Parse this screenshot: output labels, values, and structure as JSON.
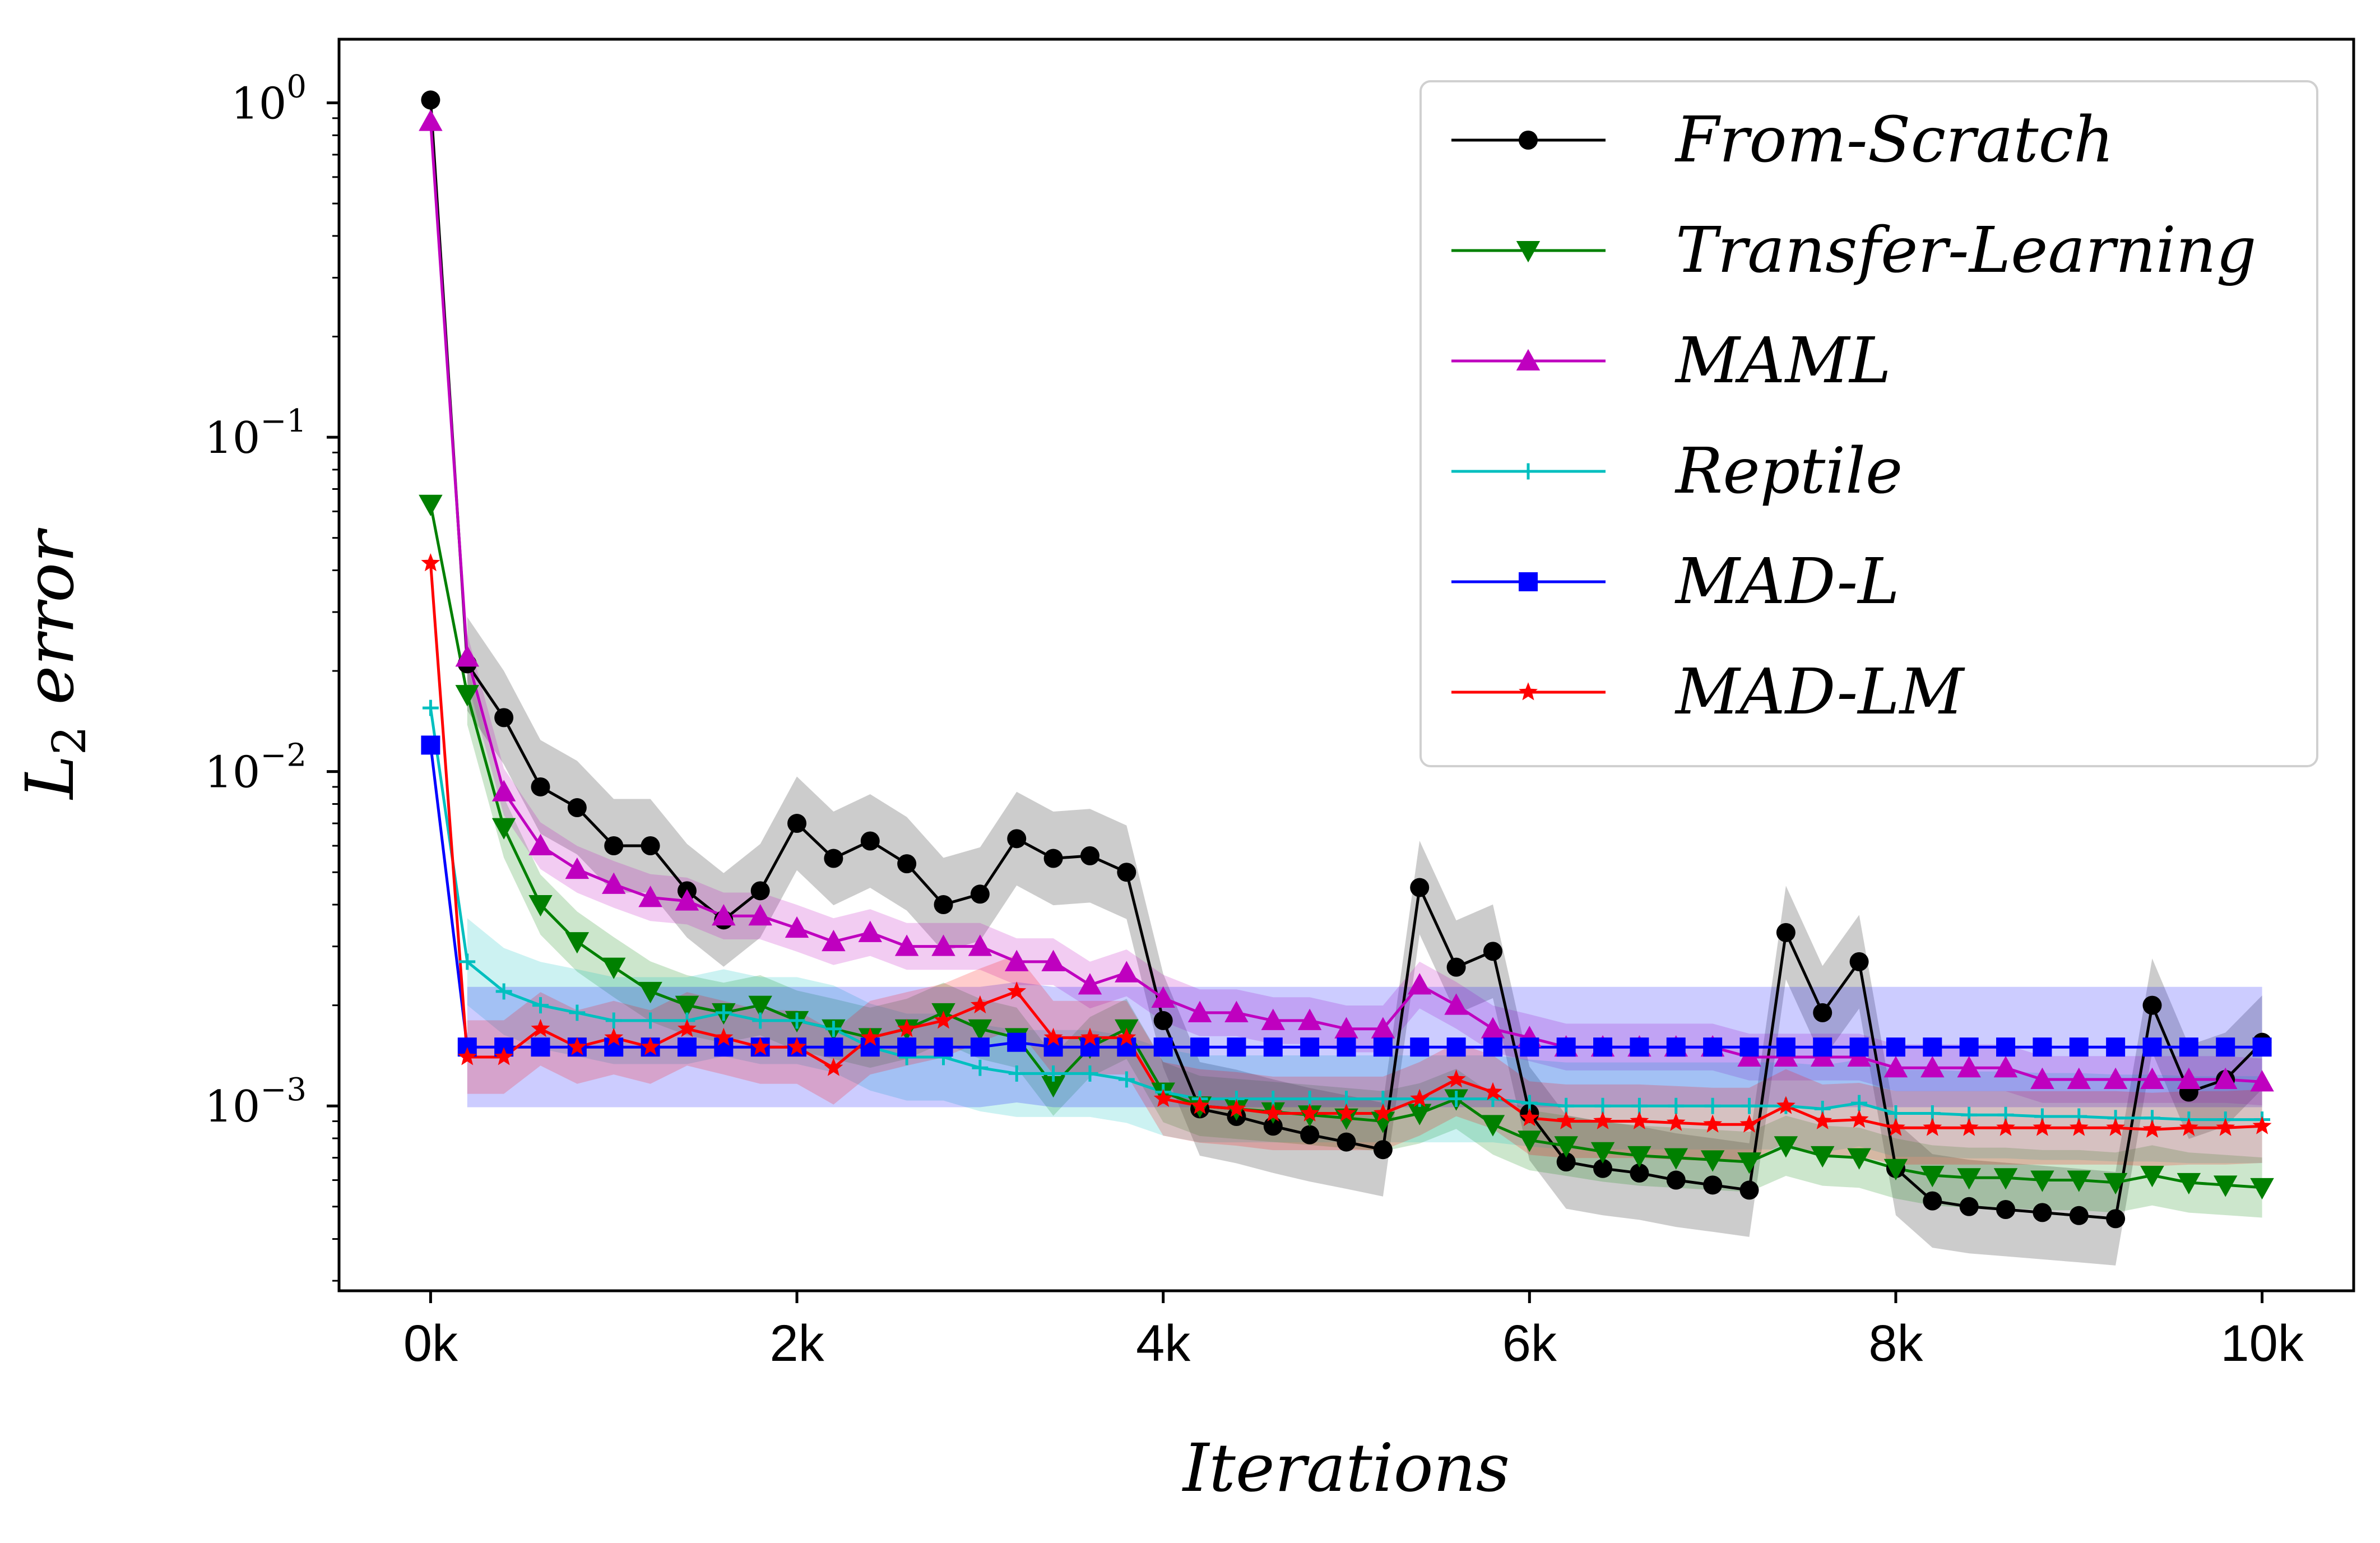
{
  "chart_data": {
    "type": "line",
    "xlabel": "Iterations",
    "ylabel_base": "L",
    "ylabel_sub": "2",
    "ylabel_rest": " error",
    "yscale": "log",
    "xlim": [
      -500,
      10500
    ],
    "ylim": [
      0.00028,
      1.55
    ],
    "grid": false,
    "legend_position": "top-right",
    "xticks": [
      {
        "value": 0,
        "label": "0k"
      },
      {
        "value": 2000,
        "label": "2k"
      },
      {
        "value": 4000,
        "label": "4k"
      },
      {
        "value": 6000,
        "label": "6k"
      },
      {
        "value": 8000,
        "label": "8k"
      },
      {
        "value": 10000,
        "label": "10k"
      }
    ],
    "yticks": [
      {
        "value": 1,
        "base": "10",
        "exp": "0"
      },
      {
        "value": 0.1,
        "base": "10",
        "exp": "−1"
      },
      {
        "value": 0.01,
        "base": "10",
        "exp": "−2"
      },
      {
        "value": 0.001,
        "base": "10",
        "exp": "−3"
      }
    ],
    "x": [
      0,
      200,
      400,
      600,
      800,
      1000,
      1200,
      1400,
      1600,
      1800,
      2000,
      2200,
      2400,
      2600,
      2800,
      3000,
      3200,
      3400,
      3600,
      3800,
      4000,
      4200,
      4400,
      4600,
      4800,
      5000,
      5200,
      5400,
      5600,
      5800,
      6000,
      6200,
      6400,
      6600,
      6800,
      7000,
      7200,
      7400,
      7600,
      7800,
      8000,
      8200,
      8400,
      8600,
      8800,
      9000,
      9200,
      9400,
      9600,
      9800,
      10000
    ],
    "series": [
      {
        "name": "From-Scratch",
        "color": "#000000",
        "marker": "circle",
        "band_spread": 0.14,
        "values": [
          1.02,
          0.021,
          0.0145,
          0.009,
          0.0078,
          0.006,
          0.006,
          0.0044,
          0.0036,
          0.0044,
          0.007,
          0.0055,
          0.0062,
          0.0053,
          0.004,
          0.0043,
          0.0063,
          0.0055,
          0.0056,
          0.005,
          0.0018,
          0.00098,
          0.00093,
          0.00087,
          0.00082,
          0.00078,
          0.00074,
          0.0045,
          0.0026,
          0.0029,
          0.00095,
          0.00068,
          0.00065,
          0.00063,
          0.0006,
          0.00058,
          0.00056,
          0.0033,
          0.0019,
          0.0027,
          0.00065,
          0.00052,
          0.0005,
          0.00049,
          0.00048,
          0.00047,
          0.00046,
          0.002,
          0.0011,
          0.0012,
          0.00155
        ]
      },
      {
        "name": "Transfer-Learning",
        "color": "#008000",
        "marker": "triangle-down",
        "band_spread": 0.09,
        "values": [
          0.063,
          0.017,
          0.0068,
          0.004,
          0.0031,
          0.0026,
          0.0022,
          0.002,
          0.0019,
          0.002,
          0.0018,
          0.0017,
          0.0016,
          0.0017,
          0.0019,
          0.0017,
          0.0016,
          0.00115,
          0.0015,
          0.0017,
          0.0011,
          0.001,
          0.00098,
          0.00096,
          0.00094,
          0.00092,
          0.0009,
          0.00095,
          0.00105,
          0.00088,
          0.00079,
          0.00076,
          0.00073,
          0.00071,
          0.0007,
          0.00069,
          0.00068,
          0.00076,
          0.00071,
          0.0007,
          0.00065,
          0.00062,
          0.00061,
          0.00061,
          0.0006,
          0.0006,
          0.00059,
          0.00062,
          0.00059,
          0.00058,
          0.00057
        ]
      },
      {
        "name": "MAML",
        "color": "#BF00BF",
        "marker": "triangle-up",
        "band_spread": 0.07,
        "values": [
          0.88,
          0.022,
          0.0087,
          0.006,
          0.0051,
          0.0046,
          0.0042,
          0.0041,
          0.0037,
          0.0037,
          0.0034,
          0.0031,
          0.0033,
          0.003,
          0.003,
          0.003,
          0.0027,
          0.0027,
          0.0023,
          0.0025,
          0.0021,
          0.0019,
          0.0019,
          0.0018,
          0.0018,
          0.0017,
          0.0017,
          0.0023,
          0.002,
          0.0017,
          0.0016,
          0.0015,
          0.0015,
          0.0015,
          0.0015,
          0.0015,
          0.0014,
          0.0014,
          0.0014,
          0.0014,
          0.0013,
          0.0013,
          0.0013,
          0.0013,
          0.0012,
          0.0012,
          0.0012,
          0.0012,
          0.0012,
          0.0012,
          0.00118
        ]
      },
      {
        "name": "Reptile",
        "color": "#00BFBF",
        "marker": "plus",
        "band_spread": 0.13,
        "values": [
          0.0155,
          0.0027,
          0.0022,
          0.002,
          0.0019,
          0.0018,
          0.0018,
          0.0018,
          0.0019,
          0.0018,
          0.0018,
          0.0017,
          0.0015,
          0.0014,
          0.0014,
          0.0013,
          0.00125,
          0.00125,
          0.00125,
          0.0012,
          0.0011,
          0.00105,
          0.00105,
          0.00105,
          0.00105,
          0.00105,
          0.00105,
          0.00105,
          0.00105,
          0.00105,
          0.00102,
          0.001,
          0.001,
          0.001,
          0.001,
          0.001,
          0.001,
          0.001,
          0.00098,
          0.00102,
          0.00095,
          0.00095,
          0.00094,
          0.00094,
          0.00093,
          0.00093,
          0.00092,
          0.00092,
          0.00091,
          0.00091,
          0.00091
        ]
      },
      {
        "name": "MAD-L",
        "color": "#0000FF",
        "marker": "square",
        "band_spread": 0.18,
        "values": [
          0.012,
          0.0015,
          0.0015,
          0.0015,
          0.0015,
          0.0015,
          0.0015,
          0.0015,
          0.0015,
          0.0015,
          0.0015,
          0.0015,
          0.0015,
          0.0015,
          0.0015,
          0.0015,
          0.00155,
          0.0015,
          0.0015,
          0.0015,
          0.0015,
          0.0015,
          0.0015,
          0.0015,
          0.0015,
          0.0015,
          0.0015,
          0.0015,
          0.0015,
          0.0015,
          0.0015,
          0.0015,
          0.0015,
          0.0015,
          0.0015,
          0.0015,
          0.0015,
          0.0015,
          0.0015,
          0.0015,
          0.0015,
          0.0015,
          0.0015,
          0.0015,
          0.0015,
          0.0015,
          0.0015,
          0.0015,
          0.0015,
          0.0015,
          0.0015
        ]
      },
      {
        "name": "MAD-LM",
        "color": "#FF0000",
        "marker": "star",
        "band_spread": 0.11,
        "values": [
          0.042,
          0.0014,
          0.0014,
          0.0017,
          0.0015,
          0.0016,
          0.0015,
          0.0017,
          0.0016,
          0.0015,
          0.0015,
          0.0013,
          0.0016,
          0.0017,
          0.0018,
          0.002,
          0.0022,
          0.0016,
          0.0016,
          0.0016,
          0.00105,
          0.001,
          0.00098,
          0.00095,
          0.00095,
          0.00095,
          0.00095,
          0.00105,
          0.0012,
          0.0011,
          0.00092,
          0.0009,
          0.0009,
          0.0009,
          0.00089,
          0.00088,
          0.00088,
          0.001,
          0.0009,
          0.00091,
          0.00086,
          0.00086,
          0.00086,
          0.00086,
          0.00086,
          0.00086,
          0.00086,
          0.00085,
          0.00086,
          0.00086,
          0.00087
        ]
      }
    ]
  }
}
